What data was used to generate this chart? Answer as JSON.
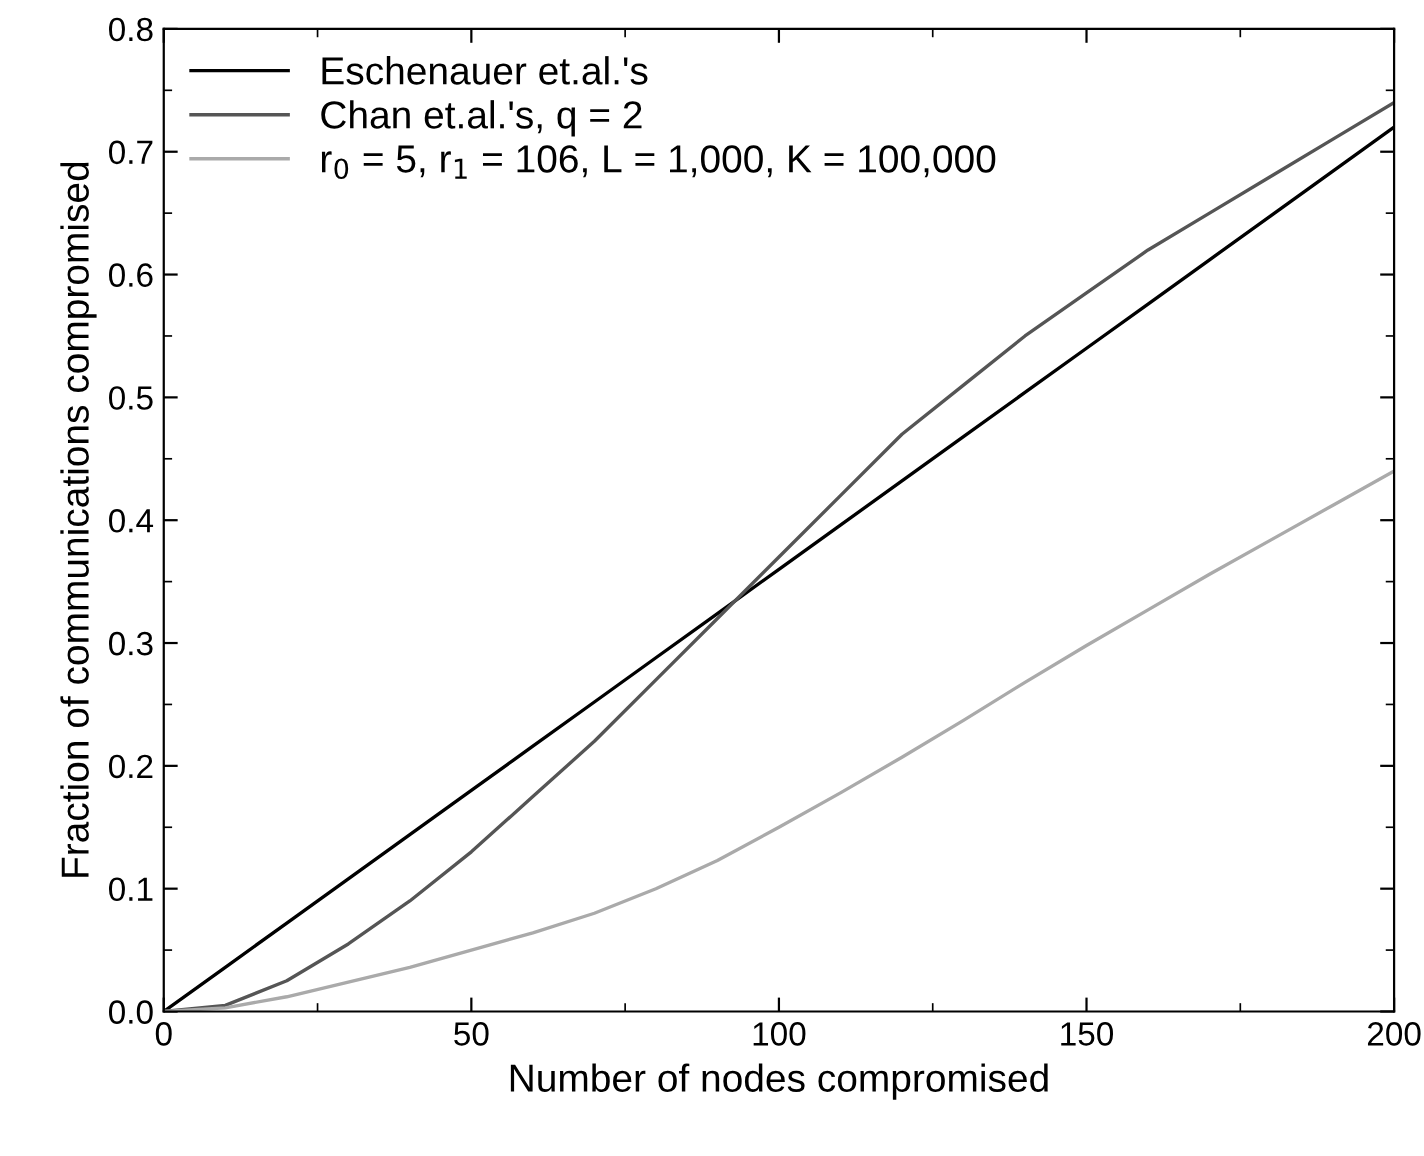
{
  "chart_data": {
    "type": "line",
    "xlabel": "Number of nodes compromised",
    "ylabel": "Fraction of communications compromised",
    "xlim": [
      0,
      200
    ],
    "xticks": [
      0,
      50,
      100,
      150,
      200
    ],
    "ylim": [
      0,
      0.8
    ],
    "yticks": [
      {
        "value": 0,
        "label": "0.0"
      },
      0.1,
      0.2,
      0.3,
      0.4,
      0.5,
      0.6,
      0.7,
      0.8
    ],
    "x": [
      0,
      10,
      20,
      30,
      40,
      50,
      60,
      70,
      80,
      90,
      100,
      110,
      120,
      130,
      140,
      150,
      160,
      170,
      180,
      190,
      200
    ],
    "legend": "top left",
    "grid": false,
    "marker": "none",
    "line_style": "solid",
    "series": [
      {
        "name": "Eschenauer et.al.'s",
        "color": "#000000",
        "values": [
          0,
          0.036,
          0.072,
          0.108,
          0.144,
          0.18,
          0.216,
          0.252,
          0.288,
          0.324,
          0.36,
          0.396,
          0.432,
          0.468,
          0.504,
          0.54,
          0.576,
          0.612,
          0.648,
          0.684,
          0.72
        ]
      },
      {
        "name": "Chan et.al.'s, q = 2",
        "color": "#555555",
        "values": [
          0,
          0.005,
          0.025,
          0.055,
          0.09,
          0.13,
          0.175,
          0.22,
          0.27,
          0.32,
          0.37,
          0.42,
          0.47,
          0.51,
          0.55,
          0.585,
          0.62,
          0.65,
          0.68,
          0.71,
          0.74
        ]
      },
      {
        "name": "r$_{0}$ = 5, r$_{1}$ = 106, L = 1,000, K = 100,000",
        "color": "#aaaaaa",
        "values": [
          0,
          0.003,
          0.012,
          0.024,
          0.036,
          0.05,
          0.064,
          0.08,
          0.1,
          0.123,
          0.15,
          0.178,
          0.207,
          0.237,
          0.268,
          0.298,
          0.327,
          0.356,
          0.384,
          0.412,
          0.44
        ]
      }
    ]
  }
}
